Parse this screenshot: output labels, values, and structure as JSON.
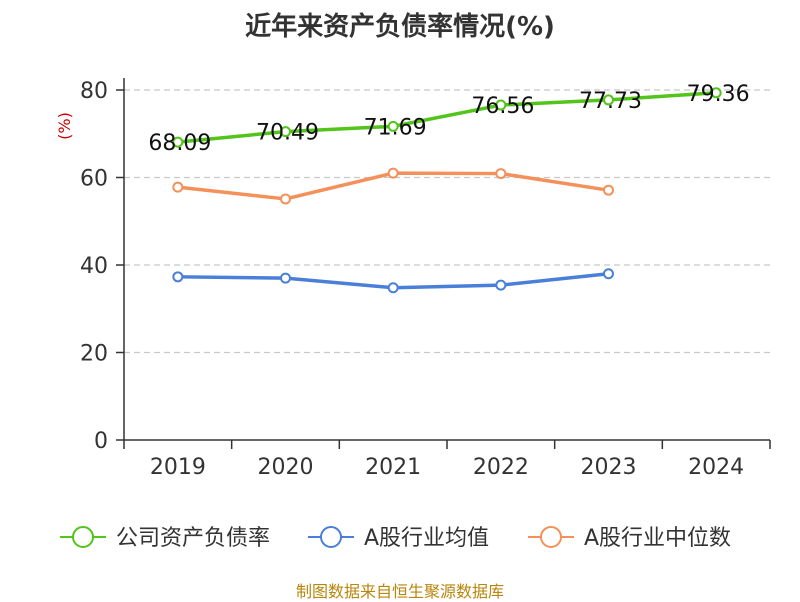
{
  "chart_data": {
    "type": "line",
    "title": "近年来资产负债率情况(%)",
    "ylabel": "(%)",
    "xlabel": "",
    "categories": [
      "2019",
      "2020",
      "2021",
      "2022",
      "2023",
      "2024"
    ],
    "ylim": [
      0,
      80
    ],
    "yticks": [
      0,
      20,
      40,
      60,
      80
    ],
    "grid": true,
    "legend_position": "bottom",
    "series": [
      {
        "name": "公司资产负债率",
        "color": "#52c41a",
        "values": [
          68.09,
          70.49,
          71.69,
          76.56,
          77.73,
          79.36
        ],
        "show_labels": true
      },
      {
        "name": "A股行业均值",
        "color": "#4a7fd9",
        "values": [
          37.3,
          37.0,
          34.8,
          35.4,
          38.0,
          null
        ],
        "show_labels": false
      },
      {
        "name": "A股行业中位数",
        "color": "#f4915a",
        "values": [
          57.8,
          55.1,
          61.0,
          60.9,
          57.1,
          null
        ],
        "show_labels": false
      }
    ]
  },
  "source": "制图数据来自恒生聚源数据库"
}
